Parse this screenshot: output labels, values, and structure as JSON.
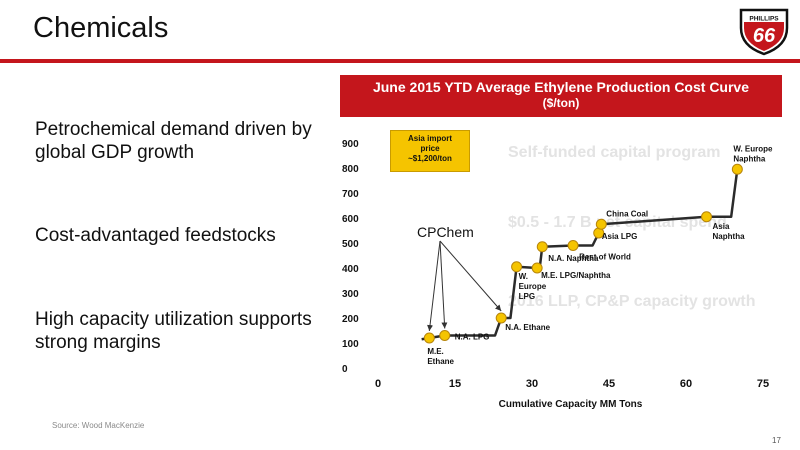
{
  "slide": {
    "title": "Chemicals",
    "source": "Source: Wood MacKenzie",
    "page_number": "17",
    "accent_color": "#c4161c",
    "logo": {
      "icon": "phillips-66-shield-logo",
      "text_top": "PHILLIPS",
      "text_main": "66"
    }
  },
  "bullets": [
    "Petrochemical demand driven by global GDP growth",
    "Cost-advantaged feedstocks",
    "High capacity utilization supports strong margins"
  ],
  "background_text": [
    "Self-funded capital program",
    "$0.5 - 1.7 B net capital spend",
    "2016 LLP, CP&P capacity growth"
  ],
  "chart_data": {
    "type": "line",
    "title": "June 2015 YTD Average Ethylene Production Cost Curve",
    "subtitle": "($/ton)",
    "xlabel": "Cumulative Capacity MM Tons",
    "ylabel": "",
    "xlim": [
      0,
      75
    ],
    "ylim": [
      0,
      900
    ],
    "xticks": [
      0,
      15,
      30,
      45,
      60,
      75
    ],
    "yticks": [
      0,
      100,
      200,
      300,
      400,
      500,
      600,
      700,
      800,
      900
    ],
    "grid": false,
    "line_color": "#2b2b2b",
    "marker_color": "#f5c400",
    "points": [
      {
        "label": "M.E. Ethane",
        "x": 10,
        "y": 120
      },
      {
        "label": "N.A. LPG",
        "x": 13,
        "y": 130
      },
      {
        "label": "N.A. Ethane",
        "x": 24,
        "y": 200
      },
      {
        "label": "W. Europe LPG",
        "x": 27,
        "y": 405
      },
      {
        "label": "M.E. LPG/Naphtha",
        "x": 31,
        "y": 400
      },
      {
        "label": "N.A. Naphtha",
        "x": 32,
        "y": 485
      },
      {
        "label": "Rest of World",
        "x": 38,
        "y": 490
      },
      {
        "label": "Asia LPG",
        "x": 43,
        "y": 540
      },
      {
        "label": "China Coal",
        "x": 43.5,
        "y": 575
      },
      {
        "label": "Asia Naphtha",
        "x": 64,
        "y": 605
      },
      {
        "label": "W. Europe Naphtha",
        "x": 70,
        "y": 795
      }
    ],
    "annotations": {
      "asia_import": [
        "Asia import",
        "price",
        "~$1,200/ton"
      ],
      "cpchem": "CPChem",
      "cpchem_arrow_targets": [
        "M.E. Ethane",
        "N.A. LPG",
        "N.A. Ethane"
      ]
    }
  }
}
